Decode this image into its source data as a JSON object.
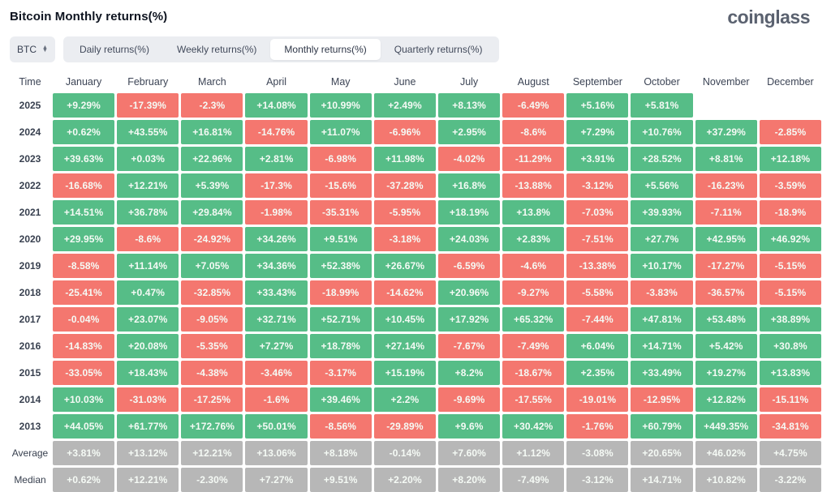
{
  "page": {
    "title": "Bitcoin Monthly returns(%)",
    "logo": "coinglass"
  },
  "controls": {
    "coin_select": "BTC",
    "coin_select_icon": "updown-chevrons-icon",
    "tabs": [
      {
        "label": "Daily returns(%)",
        "active": false
      },
      {
        "label": "Weekly returns(%)",
        "active": false
      },
      {
        "label": "Monthly returns(%)",
        "active": true
      },
      {
        "label": "Quarterly returns(%)",
        "active": false
      }
    ]
  },
  "colors": {
    "positive": "#56bd87",
    "negative": "#f4776f",
    "neutral": "#b7b7b7"
  },
  "table": {
    "time_header": "Time",
    "columns": [
      "January",
      "February",
      "March",
      "April",
      "May",
      "June",
      "July",
      "August",
      "September",
      "October",
      "November",
      "December"
    ],
    "rows": [
      {
        "label": "2025",
        "summary": false,
        "values": [
          "+9.29%",
          "-17.39%",
          "-2.3%",
          "+14.08%",
          "+10.99%",
          "+2.49%",
          "+8.13%",
          "-6.49%",
          "+5.16%",
          "+5.81%",
          "",
          ""
        ]
      },
      {
        "label": "2024",
        "summary": false,
        "values": [
          "+0.62%",
          "+43.55%",
          "+16.81%",
          "-14.76%",
          "+11.07%",
          "-6.96%",
          "+2.95%",
          "-8.6%",
          "+7.29%",
          "+10.76%",
          "+37.29%",
          "-2.85%"
        ]
      },
      {
        "label": "2023",
        "summary": false,
        "values": [
          "+39.63%",
          "+0.03%",
          "+22.96%",
          "+2.81%",
          "-6.98%",
          "+11.98%",
          "-4.02%",
          "-11.29%",
          "+3.91%",
          "+28.52%",
          "+8.81%",
          "+12.18%"
        ]
      },
      {
        "label": "2022",
        "summary": false,
        "values": [
          "-16.68%",
          "+12.21%",
          "+5.39%",
          "-17.3%",
          "-15.6%",
          "-37.28%",
          "+16.8%",
          "-13.88%",
          "-3.12%",
          "+5.56%",
          "-16.23%",
          "-3.59%"
        ]
      },
      {
        "label": "2021",
        "summary": false,
        "values": [
          "+14.51%",
          "+36.78%",
          "+29.84%",
          "-1.98%",
          "-35.31%",
          "-5.95%",
          "+18.19%",
          "+13.8%",
          "-7.03%",
          "+39.93%",
          "-7.11%",
          "-18.9%"
        ]
      },
      {
        "label": "2020",
        "summary": false,
        "values": [
          "+29.95%",
          "-8.6%",
          "-24.92%",
          "+34.26%",
          "+9.51%",
          "-3.18%",
          "+24.03%",
          "+2.83%",
          "-7.51%",
          "+27.7%",
          "+42.95%",
          "+46.92%"
        ]
      },
      {
        "label": "2019",
        "summary": false,
        "values": [
          "-8.58%",
          "+11.14%",
          "+7.05%",
          "+34.36%",
          "+52.38%",
          "+26.67%",
          "-6.59%",
          "-4.6%",
          "-13.38%",
          "+10.17%",
          "-17.27%",
          "-5.15%"
        ]
      },
      {
        "label": "2018",
        "summary": false,
        "values": [
          "-25.41%",
          "+0.47%",
          "-32.85%",
          "+33.43%",
          "-18.99%",
          "-14.62%",
          "+20.96%",
          "-9.27%",
          "-5.58%",
          "-3.83%",
          "-36.57%",
          "-5.15%"
        ]
      },
      {
        "label": "2017",
        "summary": false,
        "values": [
          "-0.04%",
          "+23.07%",
          "-9.05%",
          "+32.71%",
          "+52.71%",
          "+10.45%",
          "+17.92%",
          "+65.32%",
          "-7.44%",
          "+47.81%",
          "+53.48%",
          "+38.89%"
        ]
      },
      {
        "label": "2016",
        "summary": false,
        "values": [
          "-14.83%",
          "+20.08%",
          "-5.35%",
          "+7.27%",
          "+18.78%",
          "+27.14%",
          "-7.67%",
          "-7.49%",
          "+6.04%",
          "+14.71%",
          "+5.42%",
          "+30.8%"
        ]
      },
      {
        "label": "2015",
        "summary": false,
        "values": [
          "-33.05%",
          "+18.43%",
          "-4.38%",
          "-3.46%",
          "-3.17%",
          "+15.19%",
          "+8.2%",
          "-18.67%",
          "+2.35%",
          "+33.49%",
          "+19.27%",
          "+13.83%"
        ]
      },
      {
        "label": "2014",
        "summary": false,
        "values": [
          "+10.03%",
          "-31.03%",
          "-17.25%",
          "-1.6%",
          "+39.46%",
          "+2.2%",
          "-9.69%",
          "-17.55%",
          "-19.01%",
          "-12.95%",
          "+12.82%",
          "-15.11%"
        ]
      },
      {
        "label": "2013",
        "summary": false,
        "values": [
          "+44.05%",
          "+61.77%",
          "+172.76%",
          "+50.01%",
          "-8.56%",
          "-29.89%",
          "+9.6%",
          "+30.42%",
          "-1.76%",
          "+60.79%",
          "+449.35%",
          "-34.81%"
        ]
      },
      {
        "label": "Average",
        "summary": true,
        "values": [
          "+3.81%",
          "+13.12%",
          "+12.21%",
          "+13.06%",
          "+8.18%",
          "-0.14%",
          "+7.60%",
          "+1.12%",
          "-3.08%",
          "+20.65%",
          "+46.02%",
          "+4.75%"
        ]
      },
      {
        "label": "Median",
        "summary": true,
        "values": [
          "+0.62%",
          "+12.21%",
          "-2.30%",
          "+7.27%",
          "+9.51%",
          "+2.20%",
          "+8.20%",
          "-7.49%",
          "-3.12%",
          "+14.71%",
          "+10.82%",
          "-3.22%"
        ]
      }
    ]
  }
}
